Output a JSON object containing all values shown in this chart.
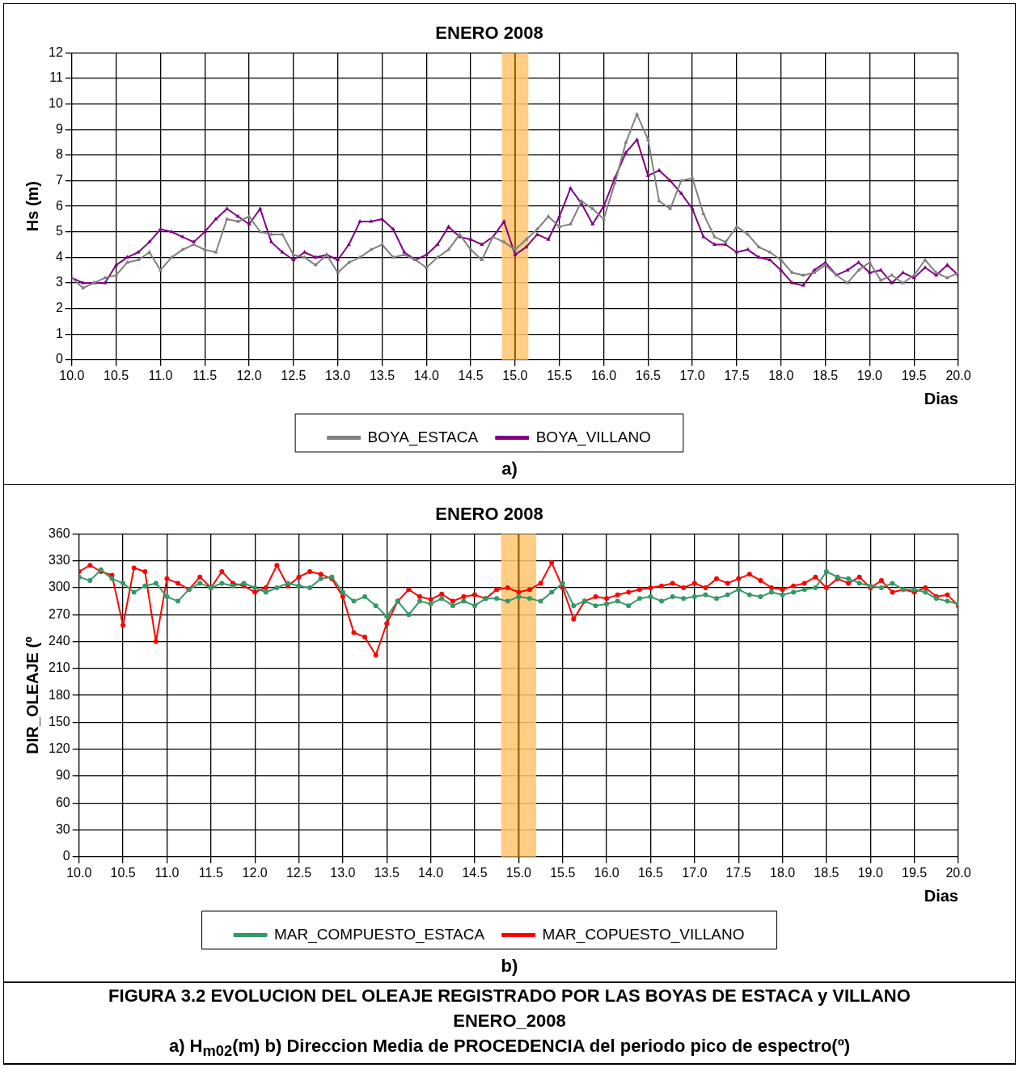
{
  "chart_data": [
    {
      "type": "line",
      "title": "ENERO 2008",
      "ylabel": "Hs (m)",
      "xlabel": "Dias",
      "x": [
        10,
        10.125,
        10.25,
        10.375,
        10.5,
        10.625,
        10.75,
        10.875,
        11,
        11.125,
        11.25,
        11.375,
        11.5,
        11.625,
        11.75,
        11.875,
        12,
        12.125,
        12.25,
        12.375,
        12.5,
        12.625,
        12.75,
        12.875,
        13,
        13.125,
        13.25,
        13.375,
        13.5,
        13.625,
        13.75,
        13.875,
        14,
        14.125,
        14.25,
        14.375,
        14.5,
        14.625,
        14.75,
        14.875,
        15,
        15.125,
        15.25,
        15.375,
        15.5,
        15.625,
        15.75,
        15.875,
        16,
        16.125,
        16.25,
        16.375,
        16.5,
        16.625,
        16.75,
        16.875,
        17,
        17.125,
        17.25,
        17.375,
        17.5,
        17.625,
        17.75,
        17.875,
        18,
        18.125,
        18.25,
        18.375,
        18.5,
        18.625,
        18.75,
        18.875,
        19,
        19.125,
        19.25,
        19.375,
        19.5,
        19.625,
        19.75,
        19.875,
        20
      ],
      "series": [
        {
          "name": "BOYA_ESTACA",
          "color": "#808080",
          "values": [
            3.2,
            2.8,
            3.0,
            3.2,
            3.3,
            3.8,
            3.9,
            4.2,
            3.5,
            4.0,
            4.3,
            4.5,
            4.3,
            4.2,
            5.5,
            5.4,
            5.6,
            5.0,
            4.9,
            4.9,
            4.1,
            4.0,
            3.7,
            4.1,
            3.4,
            3.8,
            4.0,
            4.3,
            4.5,
            4.0,
            4.1,
            3.9,
            3.6,
            4.0,
            4.3,
            4.9,
            4.3,
            3.9,
            4.8,
            4.6,
            4.3,
            4.7,
            5.1,
            5.6,
            5.2,
            5.3,
            6.2,
            5.9,
            5.5,
            6.9,
            8.5,
            9.6,
            8.6,
            6.2,
            5.9,
            7.0,
            7.1,
            5.7,
            4.8,
            4.6,
            5.2,
            4.9,
            4.4,
            4.2,
            3.9,
            3.4,
            3.3,
            3.4,
            3.7,
            3.3,
            3.0,
            3.5,
            3.8,
            3.1,
            3.3,
            3.0,
            3.3,
            3.9,
            3.4,
            3.2,
            3.4
          ]
        },
        {
          "name": "BOYA_VILLANO",
          "color": "#800080",
          "values": [
            3.2,
            3.0,
            3.0,
            3.0,
            3.7,
            4.0,
            4.2,
            4.6,
            5.1,
            5.0,
            4.8,
            4.6,
            5.0,
            5.5,
            5.9,
            5.6,
            5.3,
            5.9,
            4.6,
            4.2,
            3.9,
            4.2,
            4.0,
            4.1,
            3.9,
            4.5,
            5.4,
            5.4,
            5.5,
            5.1,
            4.2,
            3.9,
            4.1,
            4.5,
            5.2,
            4.8,
            4.7,
            4.5,
            4.8,
            5.4,
            4.1,
            4.4,
            4.9,
            4.7,
            5.6,
            6.7,
            6.1,
            5.3,
            6.0,
            7.1,
            8.1,
            8.6,
            7.2,
            7.4,
            7.0,
            6.5,
            5.9,
            4.8,
            4.5,
            4.5,
            4.2,
            4.3,
            4.0,
            3.9,
            3.5,
            3.0,
            2.9,
            3.5,
            3.8,
            3.3,
            3.5,
            3.8,
            3.4,
            3.5,
            3.0,
            3.4,
            3.2,
            3.6,
            3.3,
            3.7,
            3.3
          ]
        }
      ],
      "xlim": [
        10,
        20
      ],
      "xticks": [
        {
          "value": 10,
          "label": "10.0"
        },
        {
          "value": 10.5,
          "label": "10.5"
        },
        {
          "value": 11,
          "label": "11.0"
        },
        {
          "value": 11.5,
          "label": "11.5"
        },
        {
          "value": 12,
          "label": "12.0"
        },
        {
          "value": 12.5,
          "label": "12.5"
        },
        {
          "value": 13,
          "label": "13.0"
        },
        {
          "value": 13.5,
          "label": "13.5"
        },
        {
          "value": 14,
          "label": "14.0"
        },
        {
          "value": 14.5,
          "label": "14.5"
        },
        {
          "value": 15,
          "label": "15.0"
        },
        {
          "value": 15.5,
          "label": "15.5"
        },
        {
          "value": 16,
          "label": "16.0"
        },
        {
          "value": 16.5,
          "label": "16.5"
        },
        {
          "value": 17,
          "label": "17.0"
        },
        {
          "value": 17.5,
          "label": "17.5"
        },
        {
          "value": 18,
          "label": "18.0"
        },
        {
          "value": 18.5,
          "label": "18.5"
        },
        {
          "value": 19,
          "label": "19.0"
        },
        {
          "value": 19.5,
          "label": "19.5"
        },
        {
          "value": 20,
          "label": "20.0"
        }
      ],
      "ylim": [
        0,
        12
      ],
      "yticks": [
        0,
        1,
        2,
        3,
        4,
        5,
        6,
        7,
        8,
        9,
        10,
        11,
        12
      ],
      "bands": [
        {
          "axis": "x",
          "from": 14.85,
          "to": 15.15,
          "color": "#ffc66e"
        }
      ],
      "ref_lines": [
        {
          "axis": "x",
          "value": 15,
          "color": "#8b5a00"
        }
      ],
      "grid": true,
      "legend": "bottom",
      "marker": "triangle",
      "line_style": "solid",
      "annotations": [
        "a)"
      ]
    },
    {
      "type": "line",
      "title": "ENERO 2008",
      "ylabel": "DIR_OLEAJE (º",
      "xlabel": "Dias",
      "x": [
        10,
        10.125,
        10.25,
        10.375,
        10.5,
        10.625,
        10.75,
        10.875,
        11,
        11.125,
        11.25,
        11.375,
        11.5,
        11.625,
        11.75,
        11.875,
        12,
        12.125,
        12.25,
        12.375,
        12.5,
        12.625,
        12.75,
        12.875,
        13,
        13.125,
        13.25,
        13.375,
        13.5,
        13.625,
        13.75,
        13.875,
        14,
        14.125,
        14.25,
        14.375,
        14.5,
        14.625,
        14.75,
        14.875,
        15,
        15.125,
        15.25,
        15.375,
        15.5,
        15.625,
        15.75,
        15.875,
        16,
        16.125,
        16.25,
        16.375,
        16.5,
        16.625,
        16.75,
        16.875,
        17,
        17.125,
        17.25,
        17.375,
        17.5,
        17.625,
        17.75,
        17.875,
        18,
        18.125,
        18.25,
        18.375,
        18.5,
        18.625,
        18.75,
        18.875,
        19,
        19.125,
        19.25,
        19.375,
        19.5,
        19.625,
        19.75,
        19.875,
        20
      ],
      "series": [
        {
          "name": "MAR_COMPUESTO_ESTACA",
          "color": "#339966",
          "values": [
            312,
            308,
            320,
            310,
            305,
            295,
            302,
            305,
            290,
            285,
            298,
            305,
            300,
            305,
            302,
            305,
            300,
            295,
            300,
            305,
            302,
            300,
            310,
            312,
            295,
            285,
            290,
            280,
            268,
            285,
            270,
            285,
            282,
            288,
            280,
            285,
            280,
            288,
            288,
            285,
            290,
            288,
            285,
            295,
            305,
            280,
            285,
            280,
            282,
            285,
            280,
            288,
            290,
            285,
            290,
            288,
            290,
            292,
            288,
            292,
            298,
            292,
            290,
            295,
            292,
            295,
            298,
            300,
            318,
            312,
            310,
            305,
            302,
            300,
            305,
            298,
            298,
            295,
            288,
            285,
            282
          ]
        },
        {
          "name": "MAR_COPUESTO_VILLANO",
          "color": "#ff0000",
          "values": [
            318,
            325,
            318,
            314,
            258,
            322,
            318,
            240,
            310,
            305,
            298,
            312,
            300,
            318,
            305,
            302,
            295,
            300,
            325,
            302,
            312,
            318,
            315,
            310,
            290,
            250,
            245,
            225,
            260,
            285,
            298,
            290,
            287,
            293,
            285,
            290,
            292,
            288,
            298,
            300,
            295,
            298,
            305,
            328,
            300,
            265,
            285,
            290,
            288,
            292,
            295,
            298,
            300,
            302,
            305,
            300,
            305,
            300,
            310,
            305,
            310,
            315,
            308,
            300,
            298,
            302,
            305,
            312,
            300,
            310,
            305,
            312,
            300,
            308,
            295,
            298,
            295,
            300,
            290,
            292,
            280
          ]
        }
      ],
      "xlim": [
        10,
        20
      ],
      "xticks": [
        {
          "value": 10,
          "label": "10.0"
        },
        {
          "value": 10.5,
          "label": "10.5"
        },
        {
          "value": 11,
          "label": "11.0"
        },
        {
          "value": 11.5,
          "label": "11.5"
        },
        {
          "value": 12,
          "label": "12.0"
        },
        {
          "value": 12.5,
          "label": "12.5"
        },
        {
          "value": 13,
          "label": "13.0"
        },
        {
          "value": 13.5,
          "label": "13.5"
        },
        {
          "value": 14,
          "label": "14.0"
        },
        {
          "value": 14.5,
          "label": "14.5"
        },
        {
          "value": 15,
          "label": "15.0"
        },
        {
          "value": 15.5,
          "label": "15.5"
        },
        {
          "value": 16,
          "label": "16.0"
        },
        {
          "value": 16.5,
          "label": "16.5"
        },
        {
          "value": 17,
          "label": "17.0"
        },
        {
          "value": 17.5,
          "label": "17.5"
        },
        {
          "value": 18,
          "label": "18.0"
        },
        {
          "value": 18.5,
          "label": "18.5"
        },
        {
          "value": 19,
          "label": "19.0"
        },
        {
          "value": 19.5,
          "label": "19.5"
        },
        {
          "value": 20,
          "label": "20.0"
        }
      ],
      "ylim": [
        0,
        360
      ],
      "yticks": [
        0,
        30,
        60,
        90,
        120,
        150,
        180,
        210,
        240,
        270,
        300,
        330,
        360
      ],
      "bands": [
        {
          "axis": "x",
          "from": 14.8,
          "to": 15.2,
          "color": "#ffc66e"
        }
      ],
      "ref_lines": [
        {
          "axis": "x",
          "value": 15,
          "color": "#8b5a00"
        }
      ],
      "grid": true,
      "legend": "bottom",
      "marker": "circle",
      "line_style": "solid",
      "annotations": [
        "b)",
        "FIGURA 3.2  EVOLUCION DEL OLEAJE REGISTRADO POR LAS BOYAS DE ESTACA y VILLANO",
        "ENERO_2008",
        "a) H$_{m02}$(m)    b) Direccion Media de PROCEDENCIA del periodo pico de espectro(º)"
      ]
    }
  ]
}
